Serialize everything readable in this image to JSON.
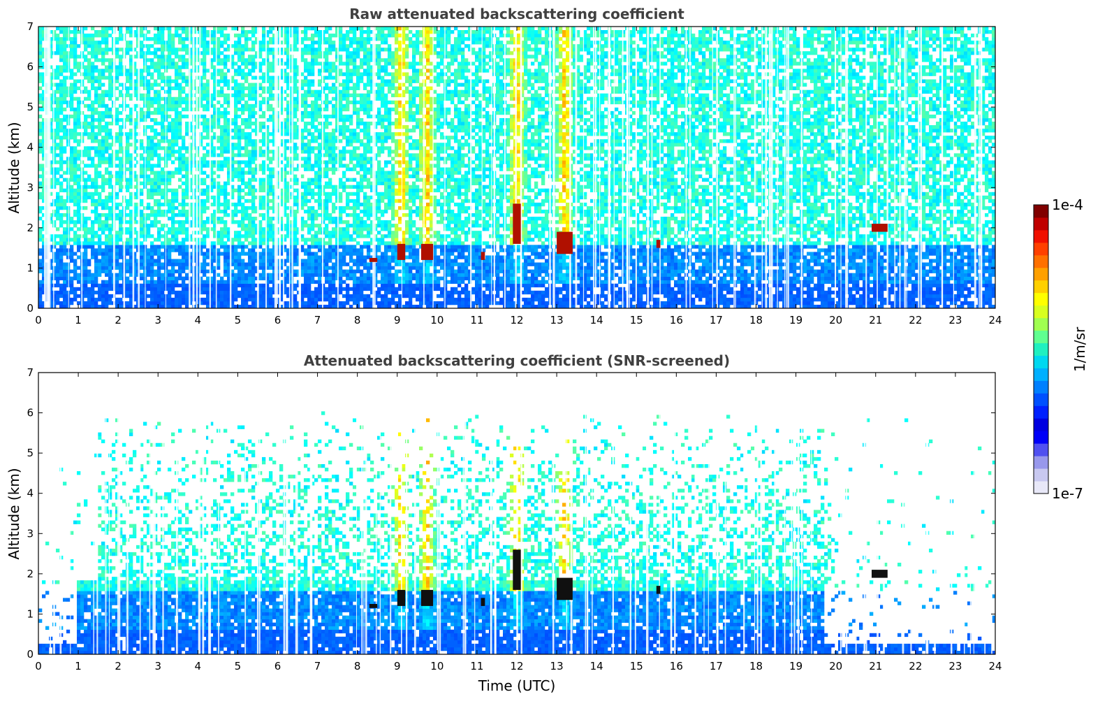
{
  "chart_data": [
    {
      "type": "heatmap",
      "title": "Raw attenuated backscattering coefficient",
      "xlabel": "",
      "ylabel": "Altitude (km)",
      "xlim": [
        0,
        24
      ],
      "ylim": [
        0,
        7
      ],
      "x_ticks": [
        0,
        1,
        2,
        3,
        4,
        5,
        6,
        7,
        8,
        9,
        10,
        11,
        12,
        13,
        14,
        15,
        16,
        17,
        18,
        19,
        20,
        21,
        22,
        23,
        24
      ],
      "y_ticks": [
        0,
        1,
        2,
        3,
        4,
        5,
        6,
        7
      ],
      "grid": false,
      "colorscale": "jet, log",
      "cloud_layers": [
        {
          "start": 8.3,
          "end": 8.5,
          "base": 1.15,
          "top": 1.25
        },
        {
          "start": 9.0,
          "end": 9.2,
          "base": 1.2,
          "top": 1.6
        },
        {
          "start": 9.6,
          "end": 9.9,
          "base": 1.2,
          "top": 1.6
        },
        {
          "start": 11.1,
          "end": 11.2,
          "base": 1.2,
          "top": 1.4
        },
        {
          "start": 11.9,
          "end": 12.1,
          "base": 1.6,
          "top": 2.6
        },
        {
          "start": 13.0,
          "end": 13.4,
          "base": 1.35,
          "top": 1.9
        },
        {
          "start": 15.5,
          "end": 15.6,
          "base": 1.5,
          "top": 1.7
        },
        {
          "start": 20.9,
          "end": 21.3,
          "base": 1.9,
          "top": 2.1
        }
      ]
    },
    {
      "type": "heatmap",
      "title": "Attenuated backscattering coefficient (SNR-screened)",
      "xlabel": "Time (UTC)",
      "ylabel": "Altitude (km)",
      "xlim": [
        0,
        24
      ],
      "ylim": [
        0,
        7
      ],
      "x_ticks": [
        0,
        1,
        2,
        3,
        4,
        5,
        6,
        7,
        8,
        9,
        10,
        11,
        12,
        13,
        14,
        15,
        16,
        17,
        18,
        19,
        20,
        21,
        22,
        23,
        24
      ],
      "y_ticks": [
        0,
        1,
        2,
        3,
        4,
        5,
        6,
        7
      ],
      "grid": false,
      "colorscale": "jet, log"
    }
  ],
  "colorbar": {
    "label": "1/m/sr",
    "max_label": "1e-4",
    "min_label": "1e-7",
    "colors": [
      "#e8e8f8",
      "#c8c8f0",
      "#9898ec",
      "#5050f0",
      "#0000f8",
      "#0000e0",
      "#0020ff",
      "#0050ff",
      "#0080ff",
      "#00b0ff",
      "#00d8f0",
      "#20f0c0",
      "#60ff90",
      "#a0ff50",
      "#d8ff20",
      "#ffff00",
      "#ffd000",
      "#ffa000",
      "#ff7000",
      "#ff4000",
      "#f01000",
      "#c00000",
      "#800000"
    ]
  }
}
